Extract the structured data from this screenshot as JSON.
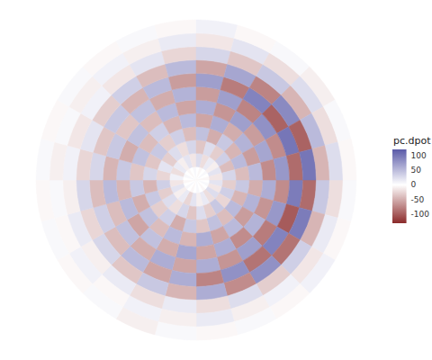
{
  "chart_data": {
    "type": "polar_heatmap",
    "tick_labels": false,
    "colorbar": {
      "title": "pc.dpot",
      "range": [
        -130,
        120
      ],
      "ticks": [
        -100,
        -50,
        0,
        50,
        100
      ],
      "colors": [
        "#8b2a2a",
        "#ffffff",
        "#5a5aa8"
      ]
    },
    "cells": [
      [
        0,
        5,
        0,
        -5,
        0,
        5,
        0,
        -5,
        0,
        5,
        0,
        -5,
        0,
        5,
        0,
        -5,
        0,
        5,
        0,
        -5,
        0,
        5,
        0,
        -5
      ],
      [
        20,
        -15,
        25,
        -20,
        15,
        -10,
        20,
        -25,
        15,
        -10,
        20,
        -15,
        10,
        -20,
        15,
        -10,
        20,
        -15,
        25,
        -20,
        15,
        -10,
        20,
        -15
      ],
      [
        -30,
        35,
        -25,
        40,
        -30,
        25,
        -35,
        30,
        -20,
        25,
        -30,
        35,
        -25,
        20,
        -30,
        25,
        -20,
        30,
        -35,
        25,
        -30,
        35,
        -40,
        30
      ],
      [
        40,
        -45,
        50,
        -40,
        45,
        -35,
        40,
        -50,
        35,
        -30,
        40,
        -45,
        30,
        -35,
        40,
        -30,
        35,
        -40,
        45,
        -50,
        40,
        -45,
        50,
        -40
      ],
      [
        -50,
        55,
        -60,
        50,
        -55,
        60,
        -45,
        50,
        -40,
        45,
        -50,
        40,
        -35,
        45,
        -40,
        35,
        -45,
        50,
        -55,
        60,
        -50,
        55,
        -60,
        50
      ],
      [
        60,
        -65,
        55,
        -70,
        60,
        -55,
        65,
        -50,
        45,
        -55,
        50,
        -45,
        40,
        -50,
        45,
        -40,
        50,
        -55,
        60,
        -65,
        70,
        -60,
        65,
        -70
      ],
      [
        -70,
        75,
        -80,
        70,
        -65,
        60,
        -55,
        60,
        -50,
        45,
        -40,
        50,
        -45,
        40,
        -35,
        45,
        -50,
        55,
        -60,
        70,
        -75,
        80,
        -70,
        75
      ],
      [
        95,
        -100,
        90,
        -85,
        80,
        -75,
        60,
        -55,
        50,
        -40,
        35,
        -40,
        30,
        -35,
        40,
        -45,
        50,
        -60,
        70,
        -80,
        90,
        -95,
        100,
        -90
      ],
      [
        -90,
        95,
        -85,
        80,
        -70,
        60,
        -45,
        40,
        -35,
        30,
        -25,
        30,
        -25,
        20,
        -30,
        35,
        -40,
        50,
        -55,
        65,
        -75,
        85,
        -95,
        100
      ],
      [
        40,
        -45,
        35,
        -30,
        25,
        -20,
        15,
        -20,
        15,
        -10,
        15,
        -10,
        10,
        -15,
        10,
        -15,
        20,
        -25,
        30,
        -35,
        40,
        -45,
        50,
        -45
      ],
      [
        -20,
        15,
        -15,
        10,
        -10,
        15,
        -10,
        10,
        -5,
        10,
        -5,
        5,
        -10,
        5,
        -10,
        10,
        -10,
        15,
        -15,
        20,
        -20,
        25,
        -20,
        25
      ],
      [
        5,
        -5,
        10,
        -5,
        5,
        -5,
        5,
        -10,
        5,
        -5,
        5,
        -5,
        5,
        -5,
        5,
        -5,
        5,
        -5,
        10,
        -5,
        5,
        -10,
        5,
        -5
      ]
    ]
  }
}
